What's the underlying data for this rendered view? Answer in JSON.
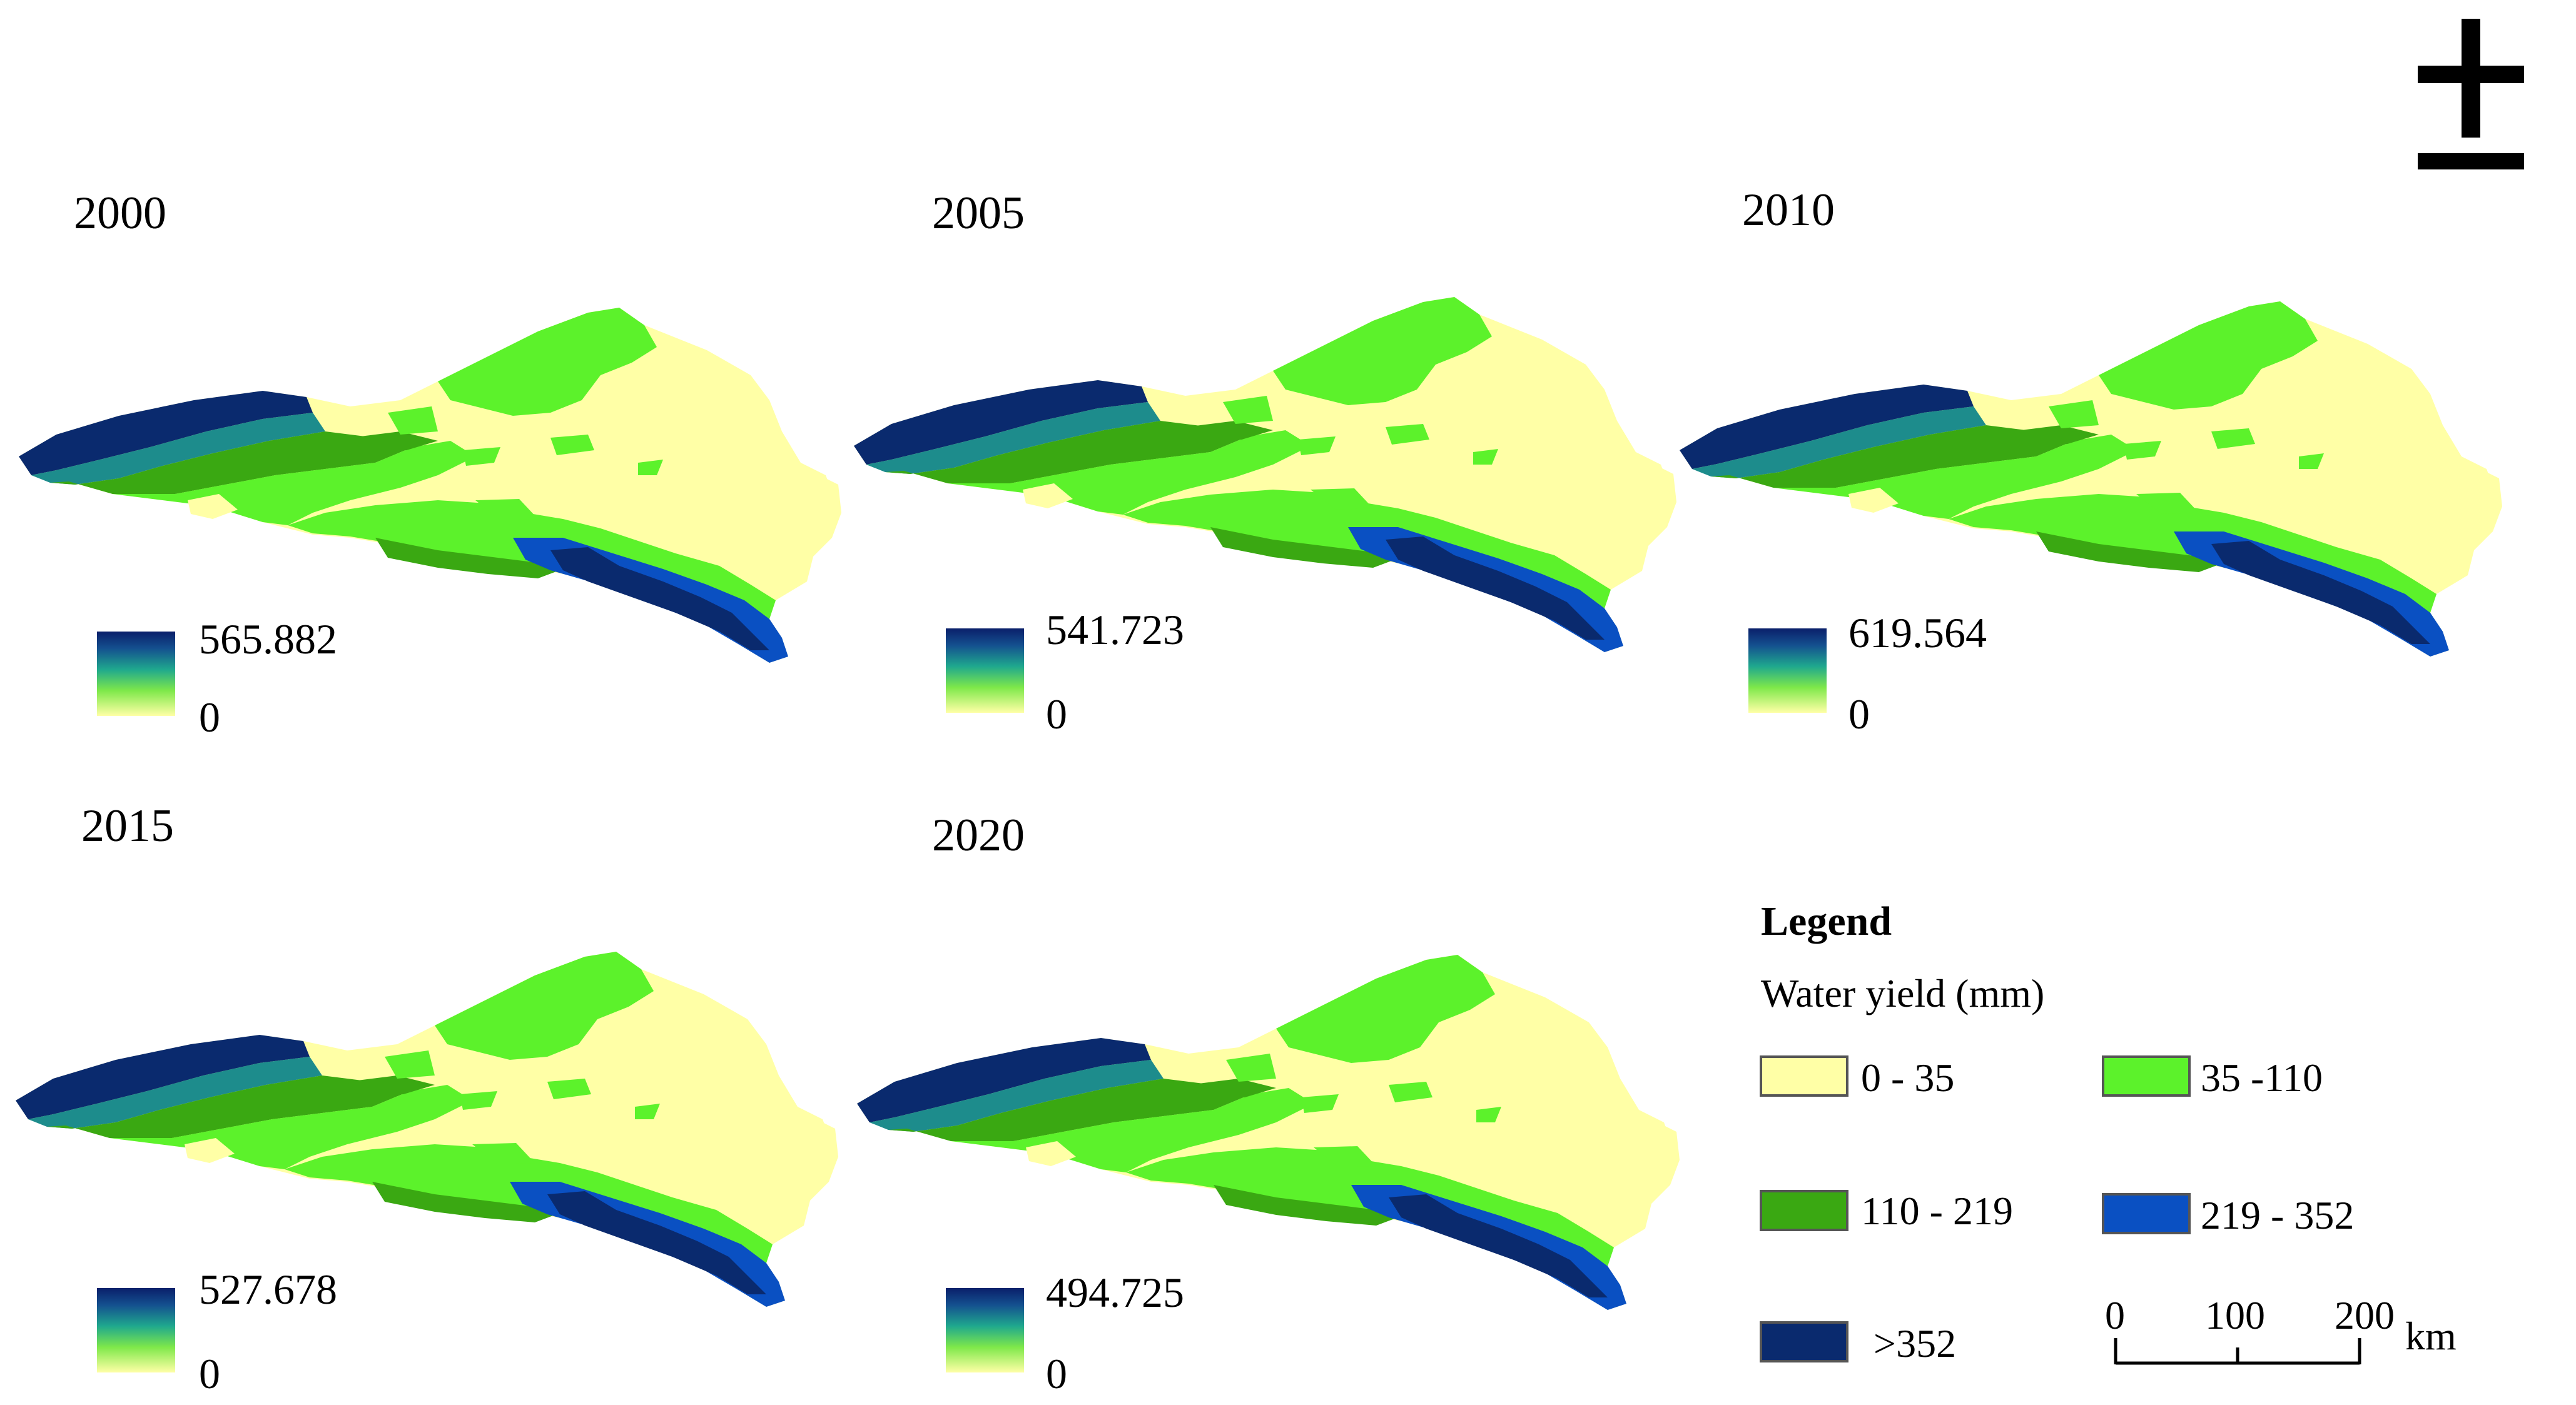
{
  "north_arrow": {
    "symbol": "north-arrow-icon"
  },
  "panels": [
    {
      "year": "2000",
      "max_label": "565.882",
      "min_label": "0"
    },
    {
      "year": "2005",
      "max_label": "541.723",
      "min_label": "0"
    },
    {
      "year": "2010",
      "max_label": "619.564",
      "min_label": "0"
    },
    {
      "year": "2015",
      "max_label": "527.678",
      "min_label": "0"
    },
    {
      "year": "2020",
      "max_label": "494.725",
      "min_label": "0"
    }
  ],
  "legend": {
    "title": "Legend",
    "subtitle": "Water yield (mm)",
    "classes": [
      {
        "label": "0 - 35",
        "color": "#FFFFA6"
      },
      {
        "label": "35 -110",
        "color": "#5CF22B"
      },
      {
        "label": "110 - 219",
        "color": "#3AA812"
      },
      {
        "label": "219 - 352",
        "color": "#0A50C2"
      },
      {
        "label": ">352",
        "color": "#0A2A6E"
      }
    ]
  },
  "scale_bar": {
    "ticks": [
      "0",
      "100",
      "200"
    ],
    "unit": "km"
  },
  "colors": {
    "desert": "#FFFFA6",
    "light_green": "#5CF22B",
    "mid_green": "#3AA812",
    "teal": "#1D8C8C",
    "blue": "#0A50C2",
    "navy": "#0A2A6E"
  }
}
